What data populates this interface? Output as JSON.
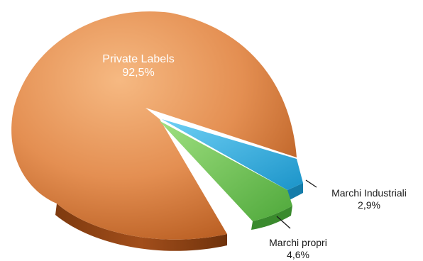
{
  "chart_data": {
    "type": "pie",
    "title": "",
    "slices": [
      {
        "label": "Private Labels",
        "value_text": "92,5%",
        "value": 92.5,
        "color": "#e0894a"
      },
      {
        "label": "Marchi Industriali",
        "value_text": "2,9%",
        "value": 2.9,
        "color": "#2ca9dd"
      },
      {
        "label": "Marchi propri",
        "value_text": "4,6%",
        "value": 4.6,
        "color": "#6cc155"
      }
    ]
  }
}
